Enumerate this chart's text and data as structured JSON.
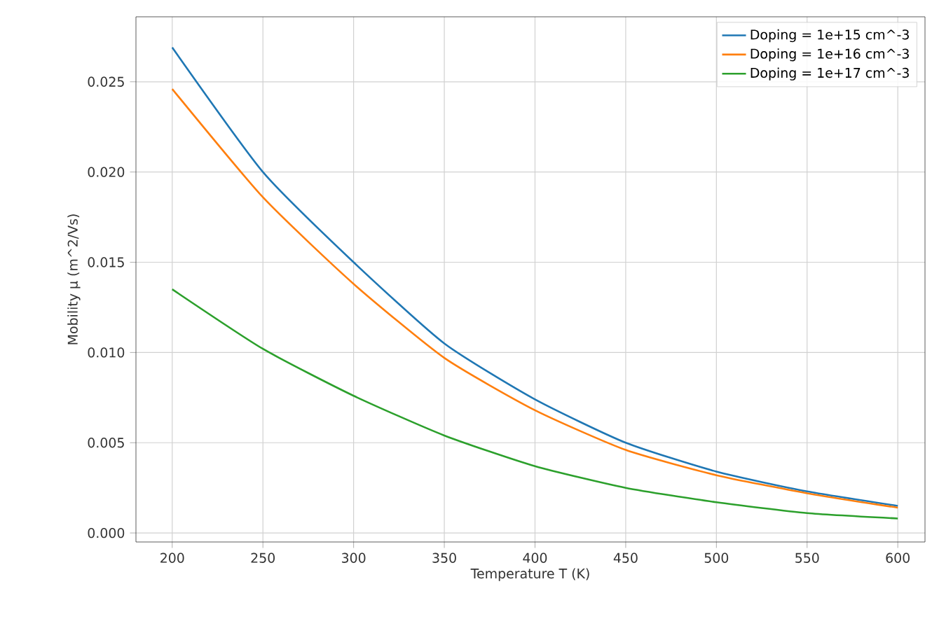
{
  "chart_data": {
    "type": "line",
    "xlabel": "Temperature T (K)",
    "ylabel": "Mobility µ (m^2/Vs)",
    "x": [
      200,
      250,
      300,
      350,
      400,
      450,
      500,
      550,
      600
    ],
    "series": [
      {
        "name": "Doping = 1e+15 cm^-3",
        "color": "#1f77b4",
        "values": [
          0.0269,
          0.02,
          0.015,
          0.0105,
          0.0074,
          0.005,
          0.0034,
          0.0023,
          0.0015
        ]
      },
      {
        "name": "Doping = 1e+16 cm^-3",
        "color": "#ff7f0e",
        "values": [
          0.0246,
          0.0186,
          0.0138,
          0.0097,
          0.0068,
          0.0046,
          0.0032,
          0.0022,
          0.0014
        ]
      },
      {
        "name": "Doping = 1e+17 cm^-3",
        "color": "#2ca02c",
        "values": [
          0.0135,
          0.0102,
          0.0076,
          0.0054,
          0.0037,
          0.0025,
          0.0017,
          0.0011,
          0.0008
        ]
      }
    ],
    "xlim": [
      180,
      615
    ],
    "ylim": [
      -0.0005,
      0.0286
    ],
    "xticks": [
      200,
      250,
      300,
      350,
      400,
      450,
      500,
      550,
      600
    ],
    "yticks": [
      {
        "value": 0,
        "label": "0.000"
      },
      {
        "value": 0.005,
        "label": "0.005"
      },
      {
        "value": 0.01,
        "label": "0.010"
      },
      {
        "value": 0.015,
        "label": "0.015"
      },
      {
        "value": 0.02,
        "label": "0.020"
      },
      {
        "value": 0.025,
        "label": "0.025"
      }
    ],
    "grid": true,
    "legend": "top right",
    "marker": "none",
    "line_style": "solid"
  }
}
